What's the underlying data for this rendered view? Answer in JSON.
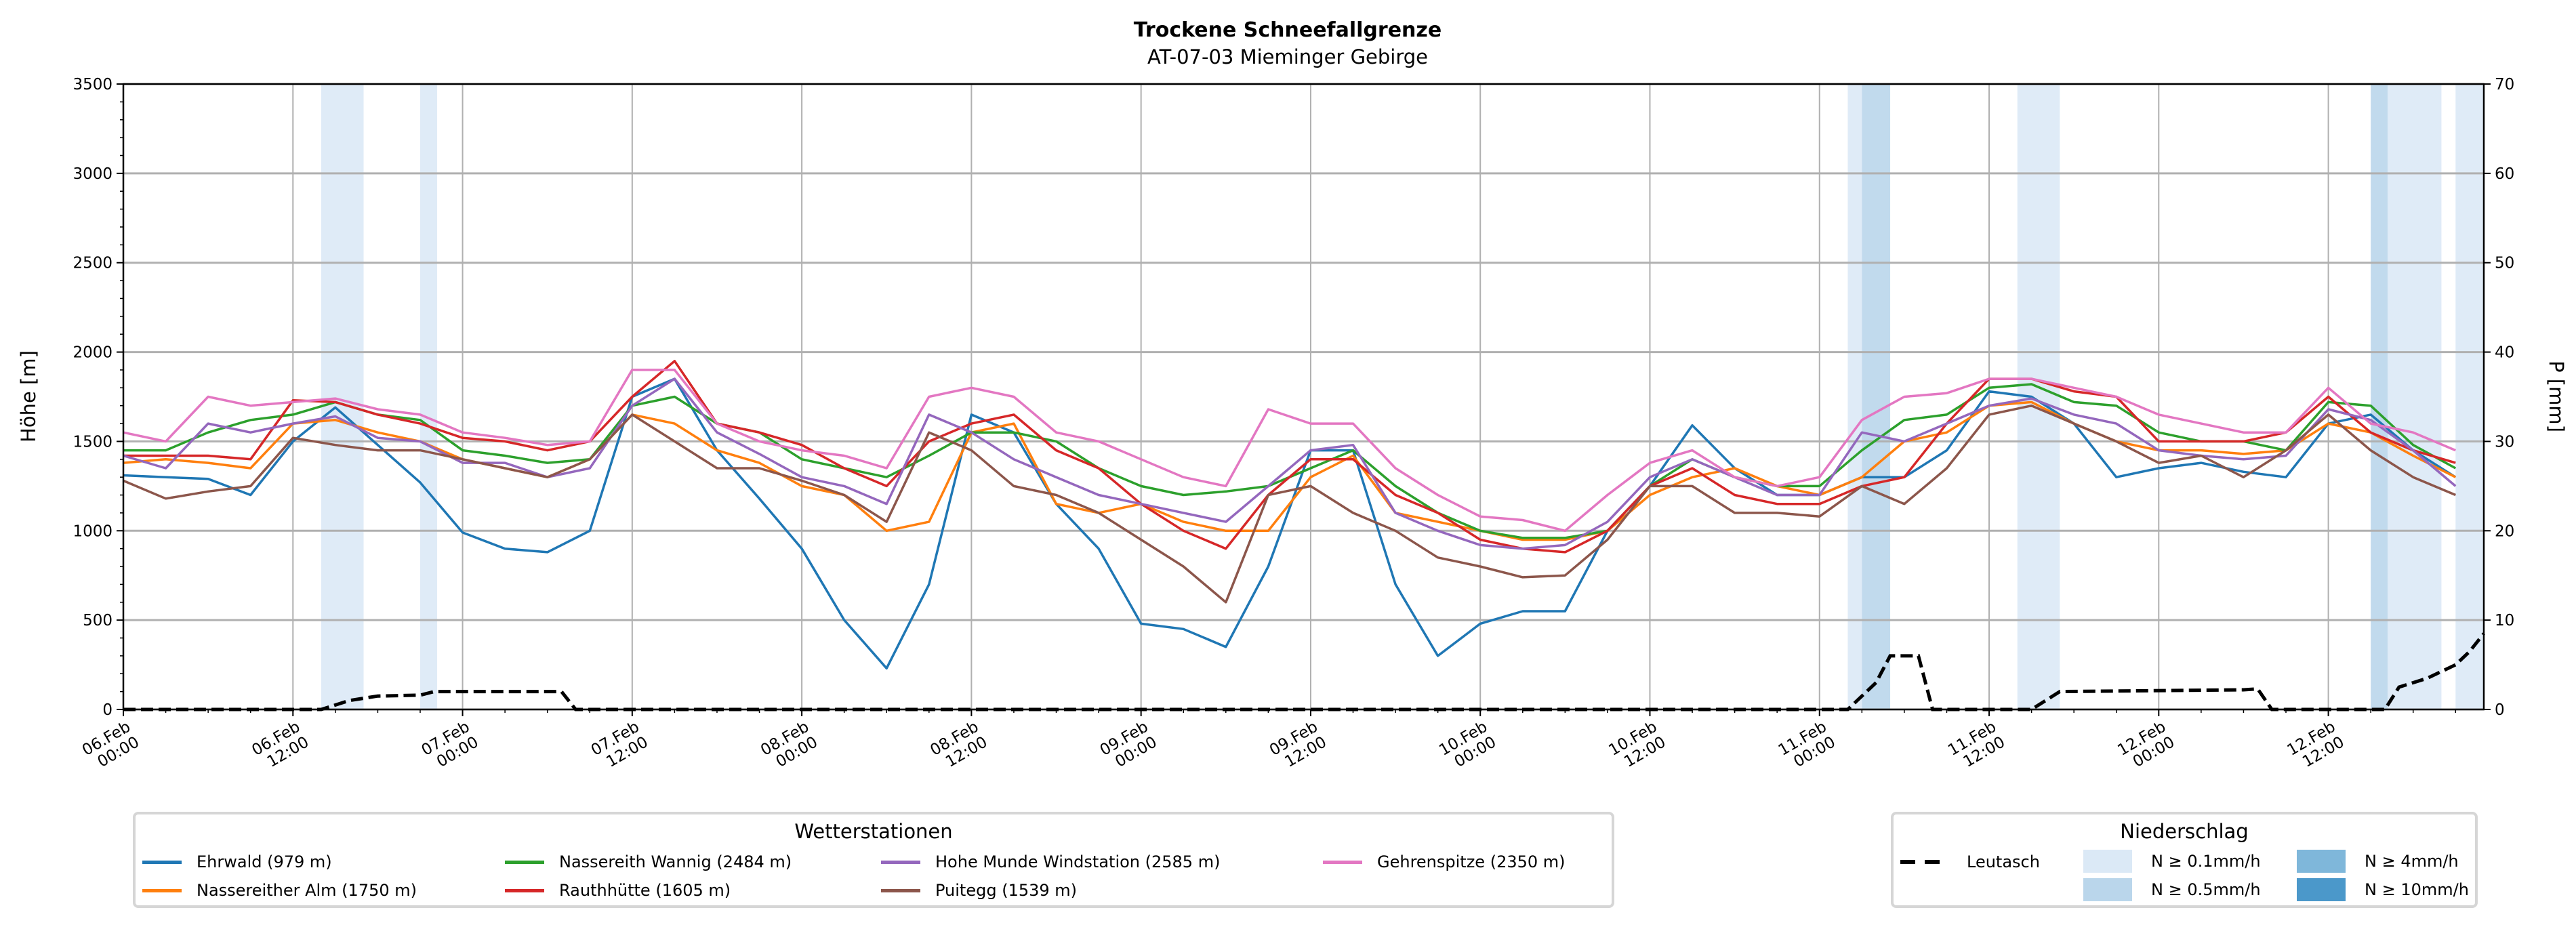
{
  "chart_data": {
    "type": "line",
    "title": "Trockene Schneefallgrenze",
    "subtitle": "AT-07-03 Mieminger Gebirge",
    "ylabel": "Höhe [m]",
    "y2label": "P [mm]",
    "ylim": [
      0,
      3500
    ],
    "y2lim": [
      0,
      70
    ],
    "yticks": [
      "0",
      "500",
      "1000",
      "1500",
      "2000",
      "2500",
      "3000",
      "3500"
    ],
    "y2ticks": [
      "0",
      "10",
      "20",
      "30",
      "40",
      "50",
      "60",
      "70"
    ],
    "x_unit": "hours since 06.Feb 00:00",
    "xlim": [
      0,
      167
    ],
    "x_step_hours": 3,
    "xticks": [
      {
        "d": "06.Feb",
        "t": "00:00"
      },
      {
        "d": "06.Feb",
        "t": "12:00"
      },
      {
        "d": "07.Feb",
        "t": "00:00"
      },
      {
        "d": "07.Feb",
        "t": "12:00"
      },
      {
        "d": "08.Feb",
        "t": "00:00"
      },
      {
        "d": "08.Feb",
        "t": "12:00"
      },
      {
        "d": "09.Feb",
        "t": "00:00"
      },
      {
        "d": "09.Feb",
        "t": "12:00"
      },
      {
        "d": "10.Feb",
        "t": "00:00"
      },
      {
        "d": "10.Feb",
        "t": "12:00"
      },
      {
        "d": "11.Feb",
        "t": "00:00"
      },
      {
        "d": "11.Feb",
        "t": "12:00"
      },
      {
        "d": "12.Feb",
        "t": "00:00"
      },
      {
        "d": "12.Feb",
        "t": "12:00"
      }
    ],
    "grid": true,
    "series": [
      {
        "name": "Ehrwald (979 m)",
        "color": "#1f77b4",
        "values": [
          1310,
          1300,
          1290,
          1200,
          1500,
          1690,
          1480,
          1270,
          990,
          900,
          880,
          1000,
          1750,
          1850,
          1450,
          1180,
          900,
          500,
          230,
          700,
          1650,
          1550,
          1150,
          900,
          480,
          450,
          350,
          800,
          1450,
          1450,
          700,
          300,
          480,
          550,
          550,
          1000,
          1250,
          1590,
          1350,
          1200,
          1200,
          1300,
          1300,
          1450,
          1780,
          1750,
          1600,
          1300,
          1350,
          1380,
          1330,
          1300,
          1600,
          1650,
          1450,
          1300
        ]
      },
      {
        "name": "Nassereither Alm (1750 m)",
        "color": "#ff7f0e",
        "values": [
          1380,
          1400,
          1380,
          1350,
          1600,
          1620,
          1550,
          1500,
          1400,
          1350,
          1300,
          1400,
          1650,
          1600,
          1450,
          1380,
          1250,
          1200,
          1000,
          1050,
          1550,
          1600,
          1150,
          1100,
          1150,
          1050,
          1000,
          1000,
          1300,
          1420,
          1100,
          1050,
          1000,
          950,
          950,
          1000,
          1200,
          1300,
          1350,
          1250,
          1200,
          1300,
          1500,
          1550,
          1700,
          1720,
          1600,
          1500,
          1450,
          1450,
          1430,
          1450,
          1600,
          1550,
          1420,
          1300
        ]
      },
      {
        "name": "Nassereith Wannig (2484 m)",
        "color": "#2ca02c",
        "values": [
          1450,
          1450,
          1550,
          1620,
          1650,
          1720,
          1650,
          1620,
          1450,
          1420,
          1380,
          1400,
          1700,
          1750,
          1600,
          1550,
          1400,
          1350,
          1300,
          1420,
          1550,
          1550,
          1500,
          1350,
          1250,
          1200,
          1220,
          1250,
          1350,
          1450,
          1250,
          1100,
          1000,
          960,
          960,
          1000,
          1250,
          1400,
          1300,
          1250,
          1250,
          1450,
          1620,
          1650,
          1800,
          1820,
          1720,
          1700,
          1550,
          1500,
          1500,
          1450,
          1720,
          1700,
          1480,
          1350
        ]
      },
      {
        "name": "Rauthhütte (1605 m)",
        "color": "#d62728",
        "values": [
          1420,
          1420,
          1420,
          1400,
          1730,
          1720,
          1650,
          1600,
          1520,
          1500,
          1450,
          1500,
          1750,
          1950,
          1600,
          1550,
          1480,
          1350,
          1250,
          1500,
          1600,
          1650,
          1450,
          1350,
          1150,
          1000,
          900,
          1200,
          1400,
          1400,
          1200,
          1100,
          950,
          900,
          880,
          1000,
          1250,
          1350,
          1200,
          1150,
          1150,
          1250,
          1300,
          1600,
          1850,
          1850,
          1780,
          1750,
          1500,
          1500,
          1500,
          1550,
          1750,
          1550,
          1450,
          1380
        ]
      },
      {
        "name": "Hohe Munde Windstation (2585 m)",
        "color": "#9467bd",
        "values": [
          1420,
          1350,
          1600,
          1550,
          1600,
          1640,
          1520,
          1500,
          1380,
          1380,
          1300,
          1350,
          1700,
          1850,
          1550,
          1430,
          1300,
          1250,
          1150,
          1650,
          1550,
          1400,
          1300,
          1200,
          1150,
          1100,
          1050,
          1250,
          1450,
          1480,
          1100,
          1000,
          920,
          900,
          920,
          1050,
          1300,
          1400,
          1300,
          1200,
          1200,
          1550,
          1500,
          1600,
          1700,
          1740,
          1650,
          1600,
          1450,
          1420,
          1400,
          1420,
          1680,
          1620,
          1450,
          1250
        ]
      },
      {
        "name": "Puitegg (1539 m)",
        "color": "#8c564b",
        "values": [
          1280,
          1180,
          1220,
          1250,
          1520,
          1480,
          1450,
          1450,
          1400,
          1350,
          1300,
          1400,
          1650,
          1500,
          1350,
          1350,
          1280,
          1200,
          1050,
          1550,
          1450,
          1250,
          1200,
          1100,
          950,
          800,
          600,
          1200,
          1250,
          1100,
          1000,
          850,
          800,
          740,
          750,
          950,
          1250,
          1250,
          1100,
          1100,
          1080,
          1250,
          1150,
          1350,
          1650,
          1700,
          1600,
          1500,
          1380,
          1420,
          1300,
          1450,
          1650,
          1450,
          1300,
          1200
        ]
      },
      {
        "name": "Gehrenspitze (2350 m)",
        "color": "#e377c2",
        "values": [
          1550,
          1500,
          1750,
          1700,
          1720,
          1740,
          1680,
          1650,
          1550,
          1520,
          1480,
          1500,
          1900,
          1900,
          1600,
          1500,
          1450,
          1420,
          1350,
          1750,
          1800,
          1750,
          1550,
          1500,
          1400,
          1300,
          1250,
          1680,
          1600,
          1600,
          1350,
          1200,
          1080,
          1060,
          1000,
          1200,
          1380,
          1450,
          1300,
          1250,
          1300,
          1620,
          1750,
          1770,
          1850,
          1850,
          1800,
          1750,
          1650,
          1600,
          1550,
          1550,
          1800,
          1600,
          1550,
          1450
        ]
      }
    ],
    "precip_series": {
      "name": "Leutasch",
      "color": "#000000",
      "axis": "right",
      "points": [
        [
          0,
          0
        ],
        [
          14,
          0
        ],
        [
          16,
          1
        ],
        [
          18,
          1.5
        ],
        [
          21,
          1.6
        ],
        [
          22,
          2
        ],
        [
          31,
          2
        ],
        [
          32,
          0
        ],
        [
          122,
          0
        ],
        [
          124,
          3
        ],
        [
          125,
          6
        ],
        [
          127,
          6
        ],
        [
          128,
          0
        ],
        [
          135,
          0
        ],
        [
          137,
          2
        ],
        [
          150,
          2.2
        ],
        [
          151,
          2.3
        ],
        [
          152,
          0
        ],
        [
          160,
          0
        ],
        [
          161,
          2.5
        ],
        [
          163,
          3.5
        ],
        [
          165,
          5
        ],
        [
          166,
          6.5
        ],
        [
          167,
          8.5
        ]
      ]
    },
    "precip_bands": [
      {
        "from": 14,
        "to": 17,
        "level": "N ≥ 0.1mm/h"
      },
      {
        "from": 21,
        "to": 22.2,
        "level": "N ≥ 0.1mm/h"
      },
      {
        "from": 122,
        "to": 123,
        "level": "N ≥ 0.1mm/h"
      },
      {
        "from": 123,
        "to": 125,
        "level": "N ≥ 0.5mm/h"
      },
      {
        "from": 134,
        "to": 137,
        "level": "N ≥ 0.1mm/h"
      },
      {
        "from": 159,
        "to": 160.2,
        "level": "N ≥ 0.5mm/h"
      },
      {
        "from": 160.2,
        "to": 164,
        "level": "N ≥ 0.1mm/h"
      },
      {
        "from": 165,
        "to": 167,
        "level": "N ≥ 0.1mm/h"
      }
    ],
    "band_colors": {
      "N ≥ 0.1mm/h": "#dbe9f6",
      "N ≥ 0.5mm/h": "#bad6eb",
      "N ≥ 4mm/h": "#7fb7da",
      "N ≥ 10mm/h": "#4b98ca"
    }
  },
  "legend_stations": {
    "title": "Wetterstationen",
    "items": [
      {
        "label": "Ehrwald (979 m)",
        "color": "#1f77b4"
      },
      {
        "label": "Nassereither Alm (1750 m)",
        "color": "#ff7f0e"
      },
      {
        "label": "Nassereith Wannig (2484 m)",
        "color": "#2ca02c"
      },
      {
        "label": "Rauthhütte (1605 m)",
        "color": "#d62728"
      },
      {
        "label": "Hohe Munde Windstation (2585 m)",
        "color": "#9467bd"
      },
      {
        "label": "Puitegg (1539 m)",
        "color": "#8c564b"
      },
      {
        "label": "Gehrenspitze (2350 m)",
        "color": "#e377c2"
      }
    ]
  },
  "legend_precip": {
    "title": "Niederschlag",
    "station": "Leutasch",
    "items": [
      {
        "label": "N ≥ 0.1mm/h",
        "color": "#dbe9f6"
      },
      {
        "label": "N ≥ 0.5mm/h",
        "color": "#bad6eb"
      },
      {
        "label": "N ≥ 4mm/h",
        "color": "#7fb7da"
      },
      {
        "label": "N ≥ 10mm/h",
        "color": "#4b98ca"
      }
    ]
  }
}
